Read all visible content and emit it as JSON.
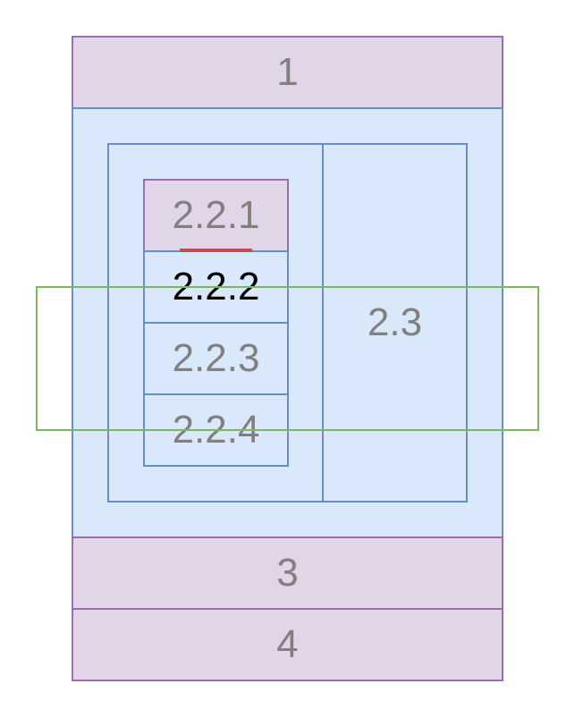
{
  "diagram": {
    "regions": {
      "r1": "1",
      "r2_2_1": "2.2.1",
      "r2_2_2": "2.2.2",
      "r2_2_3": "2.2.3",
      "r2_2_4": "2.2.4",
      "r2_3": "2.3",
      "r3": "3",
      "r4": "4"
    },
    "colors": {
      "purple_fill": "#e1d5e7",
      "purple_stroke": "#9673a6",
      "blue_fill": "#dae8fc",
      "blue_stroke": "#6c8ebf",
      "green_stroke": "#82b366",
      "red_marker": "#b85450",
      "label_gray": "#808080",
      "label_active": "#000000"
    }
  }
}
